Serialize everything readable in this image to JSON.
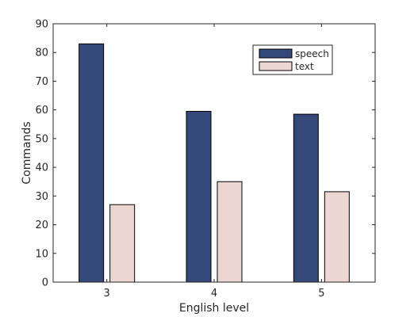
{
  "chart_data": {
    "type": "bar",
    "title": "",
    "xlabel": "English level",
    "ylabel": "Commands",
    "categories": [
      "3",
      "4",
      "5"
    ],
    "series": [
      {
        "name": "speech",
        "color": "#34487a",
        "values": [
          83,
          59.5,
          58.5
        ]
      },
      {
        "name": "text",
        "color": "#ecd6d4",
        "values": [
          27,
          35,
          31.5
        ]
      }
    ],
    "ylim": [
      0,
      90
    ],
    "yticks": [
      0,
      10,
      20,
      30,
      40,
      50,
      60,
      70,
      80,
      90
    ],
    "grid": false,
    "legend_position": "top-right"
  }
}
